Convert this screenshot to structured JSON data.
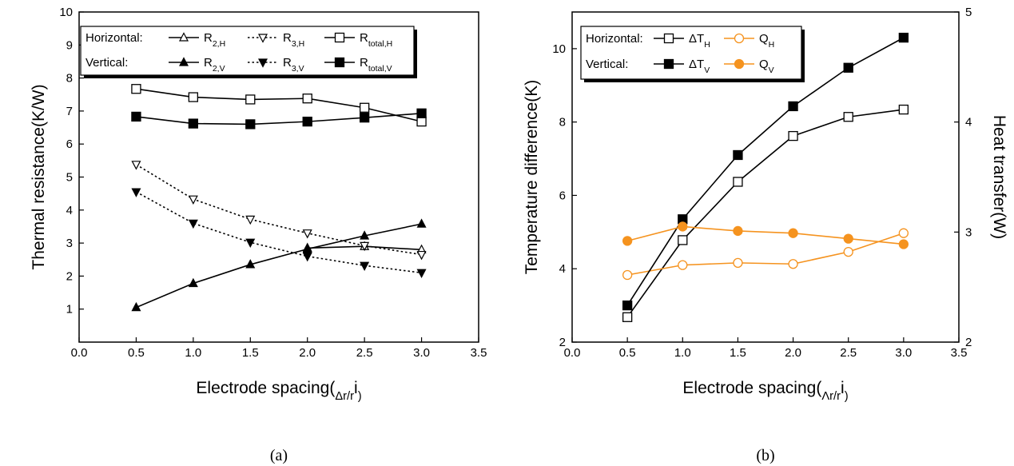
{
  "chart_data": [
    {
      "type": "line",
      "panel_label": "(a)",
      "xlabel_parts": [
        "Electrode spacing(",
        "Δr/r",
        "i",
        ")"
      ],
      "ylabel": "Thermal resistance(K/W)",
      "xlim": [
        0.0,
        3.5
      ],
      "ylim": [
        0,
        10
      ],
      "x_ticks": [
        "0.0",
        "0.5",
        "1.0",
        "1.5",
        "2.0",
        "2.5",
        "3.0",
        "3.5"
      ],
      "y_ticks": [
        "1",
        "2",
        "3",
        "4",
        "5",
        "6",
        "7",
        "8",
        "9",
        "10"
      ],
      "grid": false,
      "legend_placement": "top-left",
      "legend_rows": [
        "Horizontal:",
        "Vertical:"
      ],
      "x": [
        0.5,
        1.0,
        1.5,
        2.0,
        2.5,
        3.0
      ],
      "series": [
        {
          "name": [
            "R",
            "2,H"
          ],
          "values": [
            null,
            null,
            null,
            2.85,
            2.9,
            2.8
          ],
          "marker": "triangle-up-open",
          "dash": "solid",
          "color": "#000000",
          "row": 0
        },
        {
          "name": [
            "R",
            "3,H"
          ],
          "values": [
            5.38,
            4.33,
            3.72,
            3.3,
            2.92,
            2.65
          ],
          "marker": "triangle-down-open",
          "dash": "dotted",
          "color": "#000000",
          "row": 0
        },
        {
          "name": [
            "R",
            "total,H"
          ],
          "values": [
            7.67,
            7.42,
            7.35,
            7.38,
            7.1,
            6.68
          ],
          "marker": "square-open",
          "dash": "solid",
          "color": "#000000",
          "row": 0
        },
        {
          "name": [
            "R",
            "2,V"
          ],
          "values": [
            1.05,
            1.78,
            2.35,
            2.82,
            3.22,
            3.58
          ],
          "marker": "triangle-up-filled",
          "dash": "solid",
          "color": "#000000",
          "row": 1
        },
        {
          "name": [
            "R",
            "3,V"
          ],
          "values": [
            4.55,
            3.6,
            3.02,
            2.6,
            2.32,
            2.1
          ],
          "marker": "triangle-down-filled",
          "dash": "dotted",
          "color": "#000000",
          "row": 1
        },
        {
          "name": [
            "R",
            "total,V"
          ],
          "values": [
            6.83,
            6.62,
            6.6,
            6.68,
            6.8,
            6.93
          ],
          "marker": "square-filled",
          "dash": "solid",
          "color": "#000000",
          "row": 1
        }
      ]
    },
    {
      "type": "line",
      "panel_label": "(b)",
      "xlabel_parts": [
        "Electrode spacing(",
        "Λr/r",
        "i",
        ")"
      ],
      "ylabel": "Temperature difference(K)",
      "y2label": "Heat transfer(W)",
      "xlim": [
        0.0,
        3.5
      ],
      "ylim": [
        2,
        11
      ],
      "y2lim": [
        2,
        5
      ],
      "x_ticks": [
        "0.0",
        "0.5",
        "1.0",
        "1.5",
        "2.0",
        "2.5",
        "3.0",
        "3.5"
      ],
      "y_ticks": [
        "2",
        "4",
        "6",
        "8",
        "10"
      ],
      "y2_ticks": [
        "2",
        "3",
        "4",
        "5"
      ],
      "grid": false,
      "legend_placement": "top-left",
      "legend_rows": [
        "Horizontal:",
        "Vertical:"
      ],
      "x": [
        0.5,
        1.0,
        1.5,
        2.0,
        2.5,
        3.0
      ],
      "series": [
        {
          "name": [
            "ΔT",
            "H"
          ],
          "axis": "left",
          "values": [
            2.68,
            4.78,
            6.37,
            7.62,
            8.14,
            8.34
          ],
          "marker": "square-open",
          "dash": "solid",
          "color": "#000000",
          "row": 0
        },
        {
          "name": [
            "Q",
            "H"
          ],
          "axis": "right",
          "values": [
            2.61,
            2.7,
            2.72,
            2.71,
            2.82,
            2.99
          ],
          "marker": "circle-open",
          "dash": "solid",
          "color": "#f5931f",
          "row": 0
        },
        {
          "name": [
            "ΔT",
            "V"
          ],
          "axis": "left",
          "values": [
            3.0,
            5.35,
            7.1,
            8.43,
            9.48,
            10.3
          ],
          "marker": "square-filled",
          "dash": "solid",
          "color": "#000000",
          "row": 1
        },
        {
          "name": [
            "Q",
            "V"
          ],
          "axis": "right",
          "values": [
            2.92,
            3.05,
            3.01,
            2.99,
            2.94,
            2.89
          ],
          "marker": "circle-filled",
          "dash": "solid",
          "color": "#f5931f",
          "row": 1
        }
      ]
    }
  ]
}
